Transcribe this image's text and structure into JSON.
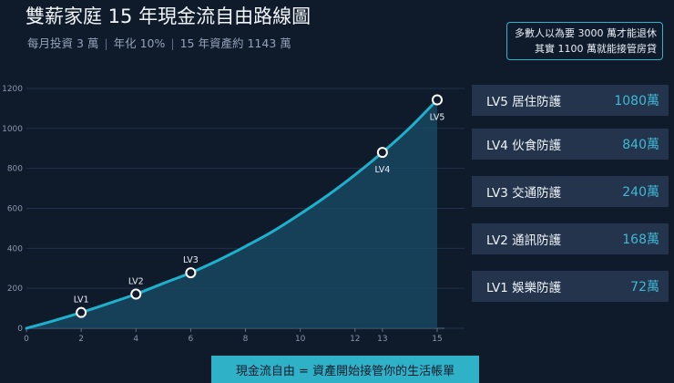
{
  "header": {
    "title": "雙薪家庭 15 年現金流自由路線圖",
    "sub1": "每月投資 3 萬",
    "sub2": "年化 10%",
    "sub3": "15 年資產約 1143 萬"
  },
  "note": {
    "line1": "多數人以為要 3000 萬才能退休",
    "line2": "其實 1100 萬就能接管房貸"
  },
  "levels": [
    {
      "name": "LV5 居住防護",
      "amount": "1080萬"
    },
    {
      "name": "LV4 伙食防護",
      "amount": "840萬"
    },
    {
      "name": "LV3 交通防護",
      "amount": "240萬"
    },
    {
      "name": "LV2 通訊防護",
      "amount": "168萬"
    },
    {
      "name": "LV1 娛樂防護",
      "amount": "72萬"
    }
  ],
  "footer": {
    "text": "現金流自由 = 資產開始接管你的生活帳單"
  },
  "colors": {
    "line": "#1fb0cc",
    "fill": "#1a4c68",
    "grid": "#22324a"
  },
  "chart_data": {
    "type": "area",
    "xlim": [
      0,
      15
    ],
    "ylim": [
      0,
      1200
    ],
    "xticks": [
      0,
      2,
      4,
      6,
      8,
      10,
      12,
      13,
      15
    ],
    "yticks": [
      0,
      200,
      400,
      600,
      800,
      1000,
      1200
    ],
    "grid": true,
    "x": [
      0,
      1,
      2,
      3,
      4,
      5,
      6,
      7,
      8,
      9,
      10,
      11,
      12,
      13,
      14,
      15
    ],
    "values": [
      0,
      38,
      79,
      124,
      171,
      225,
      278,
      340,
      410,
      485,
      572,
      665,
      768,
      880,
      1003,
      1143
    ],
    "markers": [
      {
        "label": "LV1",
        "x": 2,
        "y": 79
      },
      {
        "label": "LV2",
        "x": 4,
        "y": 171
      },
      {
        "label": "LV3",
        "x": 6,
        "y": 278
      },
      {
        "label": "LV4",
        "x": 13,
        "y": 880
      },
      {
        "label": "LV5",
        "x": 15,
        "y": 1143
      }
    ]
  }
}
